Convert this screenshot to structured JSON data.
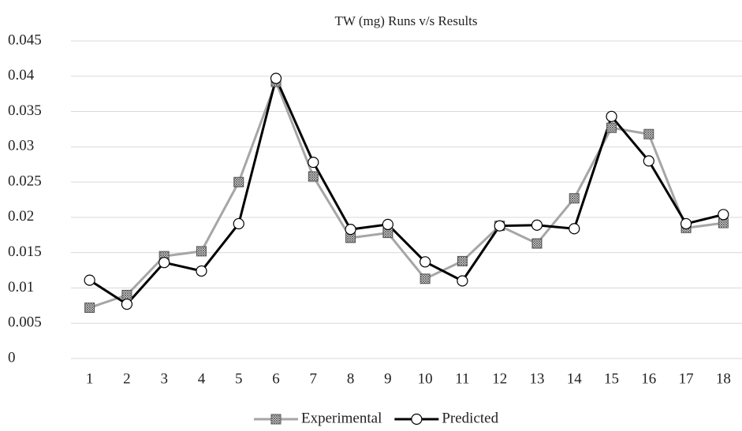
{
  "chart_data": {
    "type": "line",
    "title": "TW (mg) Runs v/s Results",
    "categories": [
      "1",
      "2",
      "3",
      "4",
      "5",
      "6",
      "7",
      "8",
      "9",
      "10",
      "11",
      "12",
      "13",
      "14",
      "15",
      "16",
      "17",
      "18"
    ],
    "series": [
      {
        "name": "Experimental",
        "color": "#a6a6a6",
        "marker": "square",
        "values": [
          0.0072,
          0.009,
          0.0145,
          0.0152,
          0.025,
          0.0392,
          0.0258,
          0.0171,
          0.0178,
          0.0113,
          0.0138,
          0.0188,
          0.0163,
          0.0227,
          0.0327,
          0.0318,
          0.0185,
          0.0192
        ]
      },
      {
        "name": "Predicted",
        "color": "#000000",
        "marker": "circle",
        "values": [
          0.0111,
          0.0077,
          0.0136,
          0.0124,
          0.0191,
          0.0397,
          0.0278,
          0.0183,
          0.019,
          0.0137,
          0.011,
          0.0188,
          0.0189,
          0.0184,
          0.0343,
          0.028,
          0.0191,
          0.0204
        ]
      }
    ],
    "ylim": [
      0,
      0.045
    ],
    "yticks": [
      0,
      0.005,
      0.01,
      0.015,
      0.02,
      0.025,
      0.03,
      0.035,
      0.04,
      0.045
    ],
    "grid": true,
    "legend": "bottom"
  }
}
